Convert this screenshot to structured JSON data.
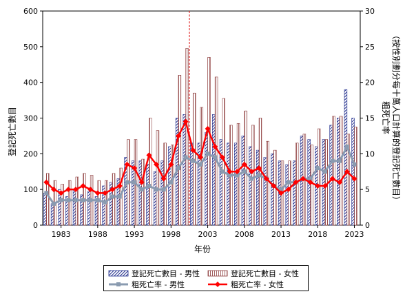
{
  "chart_data": {
    "type": "bar+line",
    "xlabel": "年份",
    "ylabel_left": "登記死亡數目",
    "ylabel_right": "粗死亡率\n（按性別劃分每十萬人口計算的登記死亡數目）",
    "ylim_left": [
      0,
      600
    ],
    "ylim_right": [
      0,
      30
    ],
    "yticks_left": [
      "0",
      "100",
      "200",
      "300",
      "400",
      "500",
      "600"
    ],
    "yticks_right": [
      "0",
      "5",
      "10",
      "15",
      "20",
      "25",
      "30"
    ],
    "years": [
      1981,
      1982,
      1983,
      1984,
      1985,
      1986,
      1987,
      1988,
      1989,
      1990,
      1991,
      1992,
      1993,
      1994,
      1995,
      1996,
      1997,
      1998,
      1999,
      2000,
      2001,
      2002,
      2003,
      2004,
      2005,
      2006,
      2007,
      2008,
      2009,
      2010,
      2011,
      2012,
      2013,
      2014,
      2015,
      2016,
      2017,
      2018,
      2019,
      2020,
      2021,
      2022,
      2023
    ],
    "xtick_labels": [
      "1983",
      "1988",
      "1993",
      "1998",
      "2003",
      "2008",
      "2013",
      "2018",
      "2023"
    ],
    "vline_year": 2000.5,
    "series": [
      {
        "name": "登記死亡數目 - 男性",
        "kind": "bar",
        "color": "#1f2c8c",
        "values": [
          90,
          60,
          100,
          80,
          100,
          85,
          95,
          80,
          110,
          120,
          130,
          190,
          180,
          180,
          170,
          150,
          180,
          220,
          300,
          310,
          230,
          230,
          260,
          310,
          240,
          230,
          230,
          250,
          220,
          210,
          190,
          200,
          180,
          170,
          180,
          250,
          240,
          220,
          240,
          280,
          300,
          380,
          300
        ]
      },
      {
        "name": "登記死亡數目 - 女性",
        "kind": "bar",
        "color": "#8c3a3a",
        "values": [
          145,
          125,
          115,
          125,
          135,
          145,
          140,
          125,
          125,
          145,
          160,
          240,
          240,
          185,
          300,
          265,
          230,
          225,
          420,
          495,
          370,
          330,
          470,
          415,
          355,
          280,
          285,
          320,
          280,
          300,
          235,
          210,
          180,
          180,
          230,
          255,
          225,
          270,
          240,
          305,
          305,
          255,
          275
        ]
      },
      {
        "name": "粗死亡率 - 男性",
        "kind": "line",
        "color": "#8a9bb0",
        "values": [
          4.5,
          3,
          3.5,
          3.5,
          3.5,
          3.5,
          3.5,
          3.5,
          3.2,
          4.0,
          4.0,
          6.0,
          6.0,
          5.0,
          5.5,
          5.0,
          5.0,
          6.0,
          8.0,
          9.5,
          9.0,
          8.5,
          10.0,
          9.5,
          7.5,
          7.0,
          7.0,
          7.5,
          6.5,
          7.0,
          6.5,
          5.5,
          5.0,
          6.0,
          6.0,
          6.5,
          6.5,
          8.0,
          7.5,
          9.0,
          9.0,
          11.0,
          8.5
        ]
      },
      {
        "name": "粗死亡率 - 女性",
        "kind": "line",
        "color": "#ff0000",
        "values": [
          6.0,
          5.0,
          4.5,
          5.0,
          5.0,
          5.5,
          5.0,
          4.5,
          4.5,
          5.0,
          5.5,
          8.5,
          8.0,
          6.0,
          9.8,
          8.5,
          6.5,
          8.5,
          12.5,
          14.5,
          10.5,
          9.5,
          13.5,
          11.0,
          9.5,
          7.5,
          7.5,
          8.5,
          7.5,
          8.0,
          6.5,
          5.5,
          4.5,
          5.0,
          6.0,
          6.5,
          6.0,
          5.5,
          5.5,
          6.5,
          6.0,
          7.5,
          6.5
        ]
      }
    ]
  }
}
